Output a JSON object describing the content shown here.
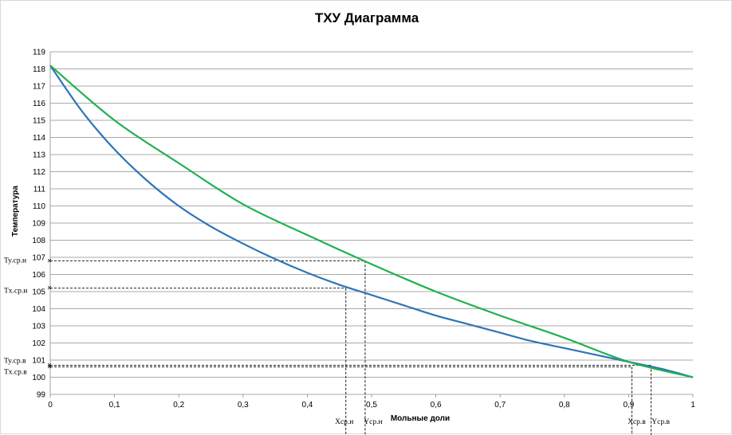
{
  "chart_data": {
    "type": "line",
    "title": "ТХУ Диаграмма",
    "xlabel": "Мольные доли",
    "ylabel": "Температура",
    "xlim": [
      0,
      1
    ],
    "ylim": [
      99,
      119
    ],
    "x_ticks": [
      "0",
      "0,1",
      "0,2",
      "0,3",
      "0,4",
      "0,5",
      "0,6",
      "0,7",
      "0,8",
      "0,9",
      "1"
    ],
    "y_ticks": [
      "99",
      "100",
      "101",
      "102",
      "103",
      "104",
      "105",
      "106",
      "107",
      "108",
      "109",
      "110",
      "111",
      "112",
      "113",
      "114",
      "115",
      "116",
      "117",
      "118",
      "119"
    ],
    "grid": "horizontal",
    "series": [
      {
        "color": "#2e75b6",
        "x": [
          0,
          0.05,
          0.1,
          0.15,
          0.2,
          0.25,
          0.3,
          0.35,
          0.4,
          0.45,
          0.5,
          0.55,
          0.6,
          0.65,
          0.7,
          0.75,
          0.8,
          0.85,
          0.9,
          0.95,
          1.0
        ],
        "y": [
          118.2,
          115.5,
          113.3,
          111.5,
          110.0,
          108.8,
          107.8,
          106.9,
          106.1,
          105.4,
          104.8,
          104.2,
          103.6,
          103.1,
          102.6,
          102.1,
          101.7,
          101.3,
          100.9,
          100.5,
          100.0
        ]
      },
      {
        "color": "#1fb150",
        "x": [
          0,
          0.1,
          0.2,
          0.3,
          0.4,
          0.5,
          0.6,
          0.7,
          0.8,
          0.9,
          1.0
        ],
        "y": [
          118.2,
          115.0,
          112.5,
          110.1,
          108.3,
          106.6,
          105.0,
          103.6,
          102.3,
          100.9,
          100.0
        ]
      }
    ],
    "annotations": [
      {
        "label": "Ty.ср.н",
        "type": "y-ref",
        "y": 106.8,
        "x_end": 0.49
      },
      {
        "label": "Tx.ср.н",
        "type": "y-ref",
        "y": 105.2,
        "x_end": 0.46
      },
      {
        "label": "Ty.ср.в",
        "type": "y-ref",
        "y": 100.7,
        "x_end": 0.935
      },
      {
        "label": "Tx.ср.в",
        "type": "y-ref",
        "y": 100.6,
        "x_end": 0.905
      },
      {
        "label": "Xср.н",
        "type": "x-ref",
        "x": 0.46,
        "y_start": 105.2
      },
      {
        "label": "Yср.н",
        "type": "x-ref",
        "x": 0.49,
        "y_start": 106.8
      },
      {
        "label": "Xср.в",
        "type": "x-ref",
        "x": 0.905,
        "y_start": 100.6
      },
      {
        "label": "Yср.в",
        "type": "x-ref",
        "x": 0.935,
        "y_start": 100.7
      }
    ]
  }
}
